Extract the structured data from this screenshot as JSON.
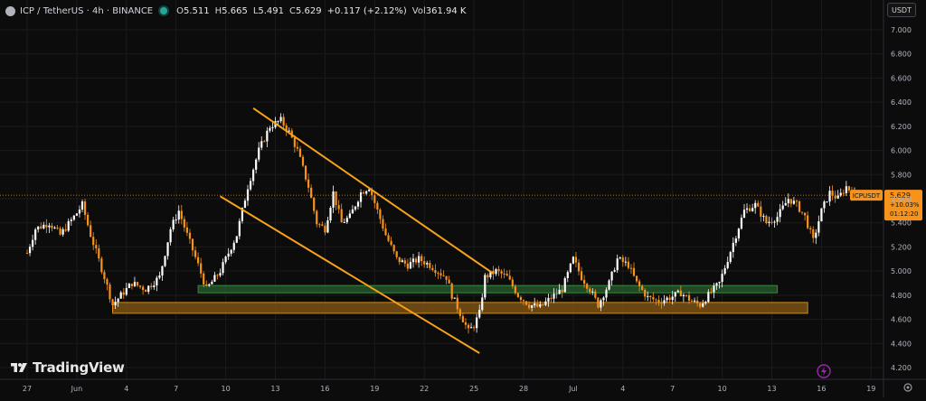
{
  "legend": {
    "symbol": "ICP / TetherUS · 4h · BINANCE",
    "open_label": "O",
    "open": "5.511",
    "high_label": "H",
    "high": "5.665",
    "low_label": "L",
    "low": "5.491",
    "close_label": "C",
    "close": "5.629",
    "change": "+0.117 (+2.12%)",
    "volume_label": "Vol",
    "volume": "361.94 K"
  },
  "currency_button": "USDT",
  "brand": "TradingView",
  "colors": {
    "background": "#0c0c0c",
    "up": "#ffffff",
    "down": "#f7931a",
    "trendline": "#f7a21b",
    "support_green": "#26552a",
    "support_orange": "#8a5a14",
    "current_price": "#f7931a",
    "grid": "#1b1b1b",
    "text": "#b2b5be"
  },
  "chart_data": {
    "type": "candlestick",
    "symbol": "ICPUSDT",
    "timeframe": "4h",
    "y_ticks": [
      "7.000",
      "6.800",
      "6.600",
      "6.400",
      "6.200",
      "6.000",
      "5.800",
      "5.600",
      "5.400",
      "5.200",
      "5.000",
      "4.800",
      "4.600",
      "4.400",
      "4.200"
    ],
    "y_range": [
      4.12,
      7.1
    ],
    "x_ticks": [
      "27",
      "Jun",
      "4",
      "7",
      "10",
      "13",
      "16",
      "19",
      "22",
      "25",
      "28",
      "Jul",
      "4",
      "7",
      "10",
      "13",
      "16",
      "19"
    ],
    "x_tick_bar_index": [
      0,
      18,
      36,
      54,
      72,
      90,
      108,
      126,
      144,
      162,
      180,
      198,
      216,
      234,
      252,
      270,
      288,
      306
    ],
    "current_price": {
      "label": "ICPUSDT",
      "price": "5.629",
      "change": "+10.03%",
      "countdown": "01:12:20",
      "value": 5.629
    },
    "keypoints": [
      [
        0,
        5.15
      ],
      [
        3,
        5.35
      ],
      [
        8,
        5.4
      ],
      [
        12,
        5.3
      ],
      [
        18,
        5.48
      ],
      [
        20,
        5.55
      ],
      [
        23,
        5.3
      ],
      [
        28,
        4.95
      ],
      [
        31,
        4.72
      ],
      [
        34,
        4.8
      ],
      [
        38,
        4.9
      ],
      [
        43,
        4.85
      ],
      [
        48,
        4.95
      ],
      [
        52,
        5.35
      ],
      [
        55,
        5.5
      ],
      [
        58,
        5.3
      ],
      [
        62,
        5.05
      ],
      [
        65,
        4.85
      ],
      [
        70,
        5.0
      ],
      [
        76,
        5.3
      ],
      [
        80,
        5.7
      ],
      [
        84,
        6.0
      ],
      [
        88,
        6.2
      ],
      [
        92,
        6.25
      ],
      [
        95,
        6.15
      ],
      [
        98,
        6.0
      ],
      [
        102,
        5.7
      ],
      [
        105,
        5.4
      ],
      [
        108,
        5.35
      ],
      [
        111,
        5.65
      ],
      [
        114,
        5.4
      ],
      [
        117,
        5.45
      ],
      [
        121,
        5.65
      ],
      [
        124,
        5.7
      ],
      [
        127,
        5.5
      ],
      [
        130,
        5.3
      ],
      [
        134,
        5.1
      ],
      [
        138,
        5.05
      ],
      [
        142,
        5.1
      ],
      [
        146,
        5.05
      ],
      [
        150,
        4.98
      ],
      [
        152,
        4.95
      ],
      [
        154,
        4.8
      ],
      [
        157,
        4.65
      ],
      [
        160,
        4.5
      ],
      [
        162,
        4.55
      ],
      [
        164,
        4.65
      ],
      [
        166,
        4.95
      ],
      [
        170,
        5.0
      ],
      [
        174,
        4.95
      ],
      [
        178,
        4.8
      ],
      [
        182,
        4.72
      ],
      [
        186,
        4.7
      ],
      [
        190,
        4.78
      ],
      [
        194,
        4.85
      ],
      [
        198,
        5.1
      ],
      [
        201,
        4.95
      ],
      [
        204,
        4.85
      ],
      [
        207,
        4.72
      ],
      [
        211,
        4.9
      ],
      [
        214,
        5.1
      ],
      [
        218,
        5.05
      ],
      [
        221,
        4.9
      ],
      [
        225,
        4.78
      ],
      [
        229,
        4.75
      ],
      [
        233,
        4.78
      ],
      [
        237,
        4.82
      ],
      [
        241,
        4.75
      ],
      [
        244,
        4.72
      ],
      [
        247,
        4.8
      ],
      [
        251,
        4.9
      ],
      [
        254,
        5.1
      ],
      [
        257,
        5.3
      ],
      [
        260,
        5.5
      ],
      [
        264,
        5.55
      ],
      [
        268,
        5.4
      ],
      [
        272,
        5.45
      ],
      [
        276,
        5.6
      ],
      [
        279,
        5.55
      ],
      [
        282,
        5.45
      ],
      [
        285,
        5.25
      ],
      [
        288,
        5.5
      ],
      [
        291,
        5.65
      ],
      [
        294,
        5.6
      ],
      [
        297,
        5.7
      ],
      [
        300,
        5.629
      ]
    ],
    "trend_channel": {
      "upper": [
        [
          82,
          6.35
        ],
        [
          169,
          4.98
        ]
      ],
      "lower": [
        [
          70,
          5.62
        ],
        [
          164,
          4.32
        ]
      ]
    },
    "zones": [
      {
        "name": "green-zone",
        "from_bar": 62,
        "to_bar": 272,
        "low": 4.82,
        "high": 4.88
      },
      {
        "name": "orange-zone",
        "from_bar": 31,
        "to_bar": 283,
        "low": 4.65,
        "high": 4.74
      }
    ]
  }
}
